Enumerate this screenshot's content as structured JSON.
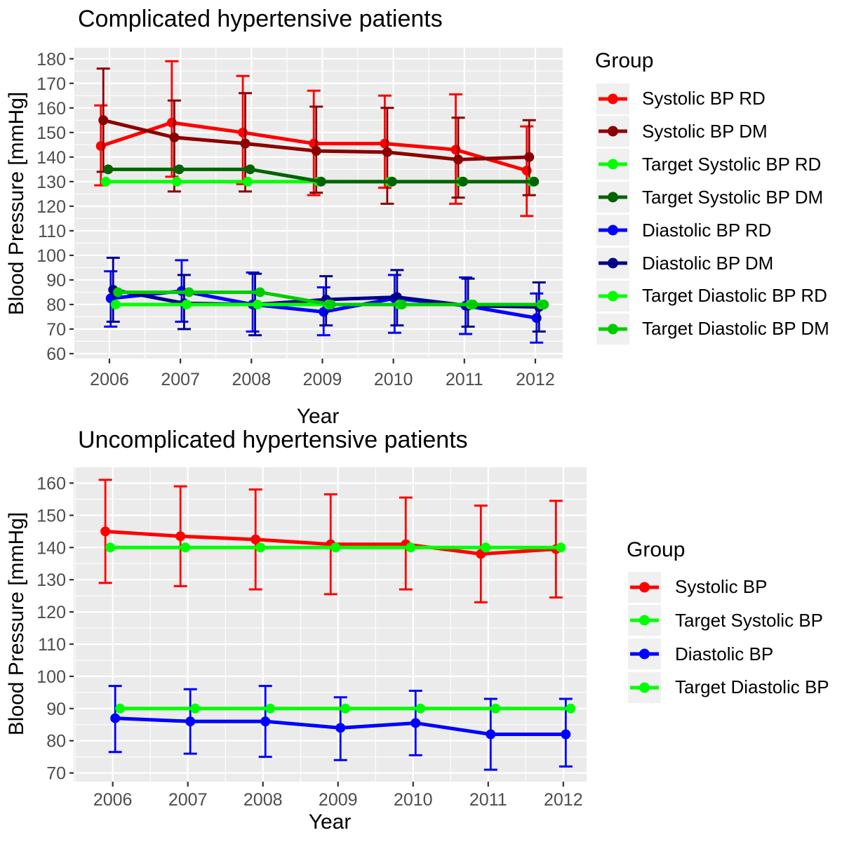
{
  "page": {
    "background": "#FFFFFF",
    "panel_background": "#EBEBEB",
    "gridline_color": "#FFFFFF",
    "tick_label_color": "#4D4D4D"
  },
  "chart_data": [
    {
      "type": "line",
      "title": "Complicated hypertensive patients",
      "xlabel": "Year",
      "ylabel": "Blood Pressure [mmHg]",
      "legend_title": "Group",
      "legend_position": "right",
      "grid": true,
      "x": [
        2006,
        2007,
        2008,
        2009,
        2010,
        2011,
        2012
      ],
      "yticks": [
        60,
        70,
        80,
        90,
        100,
        110,
        120,
        130,
        140,
        150,
        160,
        170,
        180
      ],
      "ylim": [
        58.0,
        184.5
      ],
      "series": [
        {
          "name": "Systolic BP RD",
          "color": "#FF0000",
          "values": [
            144.5,
            154,
            150,
            145.5,
            145.5,
            143,
            134.5
          ],
          "upper": [
            161,
            179,
            173,
            167,
            165,
            165.5,
            152.5
          ],
          "lower": [
            128.5,
            132,
            129,
            124.5,
            127.5,
            121,
            116
          ]
        },
        {
          "name": "Systolic BP DM",
          "color": "#8B0000",
          "values": [
            155,
            148,
            145.5,
            142.5,
            142,
            139,
            140
          ],
          "upper": [
            176,
            163,
            166,
            160.5,
            160,
            156,
            155
          ],
          "lower": [
            134,
            126,
            126,
            125.5,
            121,
            123.5,
            124.5
          ]
        },
        {
          "name": "Target Systolic BP RD",
          "color": "#00FF00",
          "values": [
            130,
            130,
            130,
            130,
            130,
            130,
            130
          ]
        },
        {
          "name": "Target Systolic BP DM",
          "color": "#006400",
          "values": [
            135,
            135,
            135,
            130,
            130,
            130,
            130
          ]
        },
        {
          "name": "Diastolic BP RD",
          "color": "#0000FF",
          "values": [
            82.5,
            85.5,
            80,
            77,
            82.5,
            79.5,
            74.5
          ],
          "upper": [
            93.5,
            98,
            93,
            87,
            92,
            91,
            84.5
          ],
          "lower": [
            71,
            73,
            69,
            67.5,
            68.5,
            68,
            64.5
          ]
        },
        {
          "name": "Diastolic BP DM",
          "color": "#00008B",
          "values": [
            86,
            80.5,
            80,
            82,
            83,
            79.5,
            79
          ],
          "upper": [
            99,
            92,
            92.5,
            91.5,
            94,
            90.5,
            89
          ],
          "lower": [
            73,
            70,
            67.5,
            71.5,
            71.5,
            71,
            69
          ]
        },
        {
          "name": "Target Diastolic BP RD",
          "color": "#00FF00",
          "values": [
            80,
            80,
            80,
            80,
            80,
            80,
            80
          ]
        },
        {
          "name": "Target Diastolic BP DM",
          "color": "#00CD00",
          "values": [
            85,
            85,
            85,
            80,
            80,
            80,
            80
          ]
        }
      ]
    },
    {
      "type": "line",
      "title": "Uncomplicated hypertensive patients",
      "xlabel": "Year",
      "ylabel": "Blood Pressure [mmHg]",
      "legend_title": "Group",
      "legend_position": "right",
      "grid": true,
      "x": [
        2006,
        2007,
        2008,
        2009,
        2010,
        2011,
        2012
      ],
      "yticks": [
        70,
        80,
        90,
        100,
        110,
        120,
        130,
        140,
        150,
        160
      ],
      "ylim": [
        67.3,
        164.9
      ],
      "series": [
        {
          "name": "Systolic BP",
          "color": "#FF0000",
          "values": [
            145,
            143.5,
            142.5,
            141,
            141,
            138,
            139.5
          ],
          "upper": [
            161,
            159,
            158,
            156.5,
            155.5,
            153,
            154.5
          ],
          "lower": [
            129,
            128,
            127,
            125.5,
            127,
            123,
            124.5
          ]
        },
        {
          "name": "Target Systolic BP",
          "color": "#00FF00",
          "values": [
            140,
            140,
            140,
            140,
            140,
            140,
            140
          ]
        },
        {
          "name": "Diastolic BP",
          "color": "#0000FF",
          "values": [
            87,
            86,
            86,
            84,
            85.5,
            82,
            82
          ],
          "upper": [
            97,
            96,
            97,
            93.5,
            95.5,
            93,
            93
          ],
          "lower": [
            76.5,
            76,
            75,
            74,
            75.5,
            71,
            72
          ]
        },
        {
          "name": "Target Diastolic BP",
          "color": "#00FF00",
          "values": [
            90,
            90,
            90,
            90,
            90,
            90,
            90
          ]
        }
      ]
    }
  ]
}
